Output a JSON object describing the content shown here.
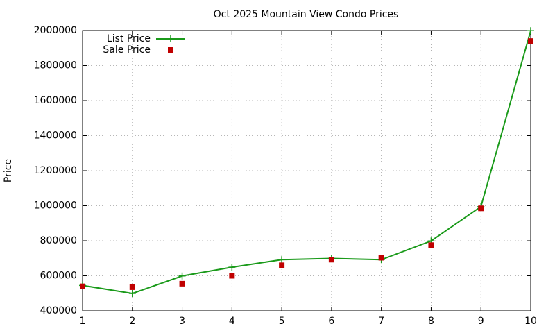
{
  "chart_data": {
    "type": "line",
    "title": "Oct 2025 Mountain View Condo Prices",
    "y_label": "Price",
    "x": [
      1,
      2,
      3,
      4,
      5,
      6,
      7,
      8,
      9,
      10
    ],
    "series": [
      {
        "name": "List Price",
        "color": "#1a9a1a",
        "style": "linespoints",
        "values": [
          545000,
          499000,
          599000,
          649000,
          692000,
          699000,
          692000,
          799000,
          995000,
          1999000
        ]
      },
      {
        "name": "Sale Price",
        "color": "#c00000",
        "style": "points",
        "values": [
          540000,
          535000,
          555000,
          600000,
          660000,
          692000,
          703000,
          775000,
          985000,
          1940000
        ]
      }
    ],
    "xlim": [
      1,
      10
    ],
    "xticks": [
      1,
      2,
      3,
      4,
      5,
      6,
      7,
      8,
      9,
      10
    ],
    "ylim": [
      400000,
      2000000
    ],
    "yticks": [
      400000,
      600000,
      800000,
      1000000,
      1200000,
      1400000,
      1600000,
      1800000,
      2000000
    ],
    "grid": true,
    "legend": "top-left"
  }
}
